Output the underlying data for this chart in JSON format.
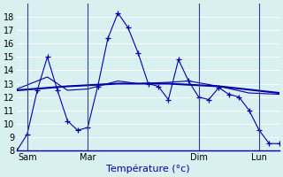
{
  "background_color": "#cce8e8",
  "grid_color": "#aacccc",
  "plot_bg": "#d8f0f0",
  "line_color": "#0000aa",
  "xlabel": "Température (°c)",
  "ylim": [
    8,
    19
  ],
  "yticks": [
    8,
    9,
    10,
    11,
    12,
    13,
    14,
    15,
    16,
    17,
    18
  ],
  "day_labels": [
    "Sam",
    "Mar",
    "Dim",
    "Lun"
  ],
  "series1_x": [
    0,
    1,
    2,
    3,
    4,
    5,
    6,
    7,
    8,
    9,
    10,
    11,
    12,
    13,
    14,
    15,
    16,
    17,
    18,
    19,
    20,
    21,
    22,
    23,
    24,
    25,
    26
  ],
  "series1_y": [
    8.0,
    9.2,
    12.5,
    15.0,
    12.5,
    10.2,
    9.5,
    9.7,
    12.8,
    16.4,
    18.3,
    17.2,
    15.3,
    13.0,
    12.8,
    11.8,
    14.8,
    13.2,
    12.0,
    11.8,
    12.7,
    12.2,
    12.0,
    11.0,
    9.5,
    8.5,
    8.5
  ],
  "series2_x": [
    0,
    5,
    10,
    15,
    20,
    26
  ],
  "series2_y": [
    12.5,
    12.8,
    13.0,
    13.0,
    12.8,
    12.3
  ],
  "series3_x": [
    0,
    3,
    5,
    7,
    10,
    12,
    15,
    17,
    20,
    23,
    26
  ],
  "series3_y": [
    12.6,
    13.5,
    12.5,
    12.6,
    13.2,
    13.0,
    13.1,
    13.2,
    12.8,
    12.3,
    12.2
  ],
  "n_points": 27,
  "series1_with_markers": true,
  "vline_color": "#334488",
  "vline_lw": 0.8,
  "xlabel_color": "#0000aa",
  "xlabel_fontsize": 8,
  "ytick_fontsize": 7,
  "xtick_fontsize": 7
}
